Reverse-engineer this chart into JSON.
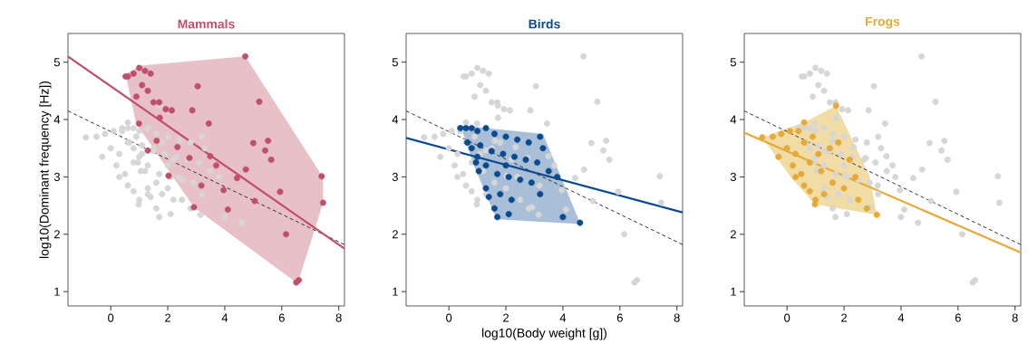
{
  "chart_data": [
    {
      "type": "scatter",
      "title": "Mammals",
      "ylabel": "log10(Dominant frequency [Hz])",
      "xlim": [
        -1.5,
        8.2
      ],
      "ylim": [
        0.75,
        5.5
      ],
      "xticks": [
        0,
        2,
        4,
        6,
        8
      ],
      "yticks": [
        1,
        2,
        3,
        4,
        5
      ],
      "series": [
        {
          "type": "area",
          "color": "#e8c0c8",
          "x": [
            0.52,
            1.04,
            4.72,
            7.45,
            7.45,
            6.56,
            2.92,
            0.89
          ],
          "values": [
            4.79,
            4.94,
            5.1,
            2.99,
            2.55,
            1.14,
            2.47,
            3.93
          ]
        },
        {
          "marker": "circle",
          "color": "#d6d6d6",
          "x": [
            0.4,
            0.6,
            0.8,
            1.0,
            1.3,
            1.6,
            2.0,
            2.4,
            2.8,
            3.2,
            3.3,
            0.65,
            0.8,
            1.1,
            1.5,
            1.9,
            2.3,
            2.7,
            3.1,
            3.5,
            3.8,
            0.95,
            1.05,
            1.3,
            1.7,
            2.1,
            2.5,
            2.9,
            1.3,
            1.4,
            1.8,
            2.2,
            1.6,
            1.7,
            2.1,
            3.2,
            4.0,
            4.6,
            1.0,
            2.0,
            -0.87,
            -0.5,
            -0.2,
            0.1,
            0.4,
            0.0,
            0.3,
            0.6,
            -0.3,
            0.2,
            0.5,
            0.8,
            1.1,
            1.5,
            1.72,
            1.8,
            2.2,
            0.3,
            0.6,
            0.8,
            1.0,
            0.98,
            1.3,
            1.6,
            2.0,
            2.5,
            2.8,
            3.15,
            2.4,
            1.2,
            0.6,
            0.9
          ],
          "values": [
            3.85,
            3.85,
            3.85,
            3.8,
            3.85,
            3.75,
            3.7,
            3.65,
            3.6,
            3.7,
            3.5,
            3.6,
            3.5,
            3.55,
            3.45,
            3.4,
            3.35,
            3.3,
            3.25,
            3.1,
            3.0,
            3.25,
            3.1,
            3.2,
            3.05,
            3.0,
            2.95,
            2.9,
            2.8,
            2.65,
            2.7,
            2.6,
            2.45,
            2.3,
            2.35,
            2.7,
            2.3,
            2.2,
            3.35,
            3.2,
            3.69,
            3.7,
            3.75,
            3.8,
            3.8,
            3.5,
            3.4,
            3.6,
            3.35,
            3.2,
            3.05,
            3.25,
            3.4,
            3.5,
            4.24,
            3.6,
            3.3,
            3.0,
            2.85,
            2.75,
            2.6,
            2.52,
            2.7,
            2.9,
            2.8,
            2.6,
            2.45,
            2.34,
            3.0,
            3.1,
            3.95,
            3.7
          ]
        },
        {
          "marker": "circle",
          "color": "#c0506a",
          "x": [
            0.6,
            0.8,
            1.0,
            1.2,
            1.4,
            1.1,
            1.3,
            1.5,
            0.9,
            1.7,
            1.72,
            1.93,
            3.05,
            2.86,
            4.72,
            5.21,
            2.14,
            3.44,
            5.0,
            5.52,
            5.42,
            5.63,
            7.4,
            7.45,
            6.15,
            6.51,
            6.6,
            2.92,
            4.11,
            2.03,
            3.18,
            3.96,
            5.05,
            5.94,
            4.74,
            3.7,
            2.34,
            1.61,
            0.99,
            1.3,
            2.76,
            4.43,
            3.49,
            0.52
          ],
          "values": [
            4.75,
            4.8,
            4.9,
            4.85,
            4.8,
            4.6,
            4.5,
            4.3,
            4.4,
            4.3,
            4.03,
            4.18,
            4.58,
            4.16,
            5.1,
            4.31,
            4.16,
            3.93,
            3.59,
            3.63,
            3.46,
            3.3,
            3.01,
            2.55,
            2.0,
            1.16,
            1.2,
            2.47,
            2.43,
            3.02,
            2.85,
            2.77,
            2.58,
            2.74,
            3.13,
            3.2,
            3.52,
            3.63,
            3.93,
            3.46,
            3.33,
            2.98,
            3.36,
            4.75
          ]
        },
        {
          "type": "line",
          "color": "#333333",
          "line_style": "dashed",
          "x": [
            -1.5,
            8.2
          ],
          "values": [
            4.15,
            1.82
          ]
        },
        {
          "type": "line",
          "color": "#c0506a",
          "line_style": "solid",
          "x": [
            -1.5,
            8.2
          ],
          "values": [
            5.1,
            1.75
          ]
        }
      ]
    },
    {
      "type": "scatter",
      "title": "Birds",
      "xlabel": "log10(Body weight [g])",
      "xlim": [
        -1.5,
        8.2
      ],
      "ylim": [
        0.75,
        5.5
      ],
      "xticks": [
        0,
        2,
        4,
        6,
        8
      ],
      "yticks": [
        1,
        2,
        3,
        4,
        5
      ],
      "series": [
        {
          "type": "area",
          "color": "#a9bfd8",
          "x": [
            0.41,
            3.3,
            4.62,
            1.67,
            0.88
          ],
          "values": [
            3.9,
            3.75,
            2.18,
            2.26,
            3.2
          ]
        },
        {
          "marker": "circle",
          "color": "#d6d6d6",
          "x": [
            0.6,
            0.8,
            1.0,
            1.2,
            1.4,
            1.1,
            1.3,
            1.5,
            0.9,
            1.7,
            1.72,
            1.93,
            3.05,
            2.86,
            4.72,
            5.21,
            2.14,
            3.44,
            5.0,
            5.52,
            5.42,
            5.63,
            7.4,
            7.45,
            6.15,
            6.51,
            6.6,
            2.92,
            4.11,
            2.03,
            3.18,
            3.96,
            5.05,
            5.94,
            4.74,
            3.7,
            2.34,
            1.61,
            0.99,
            1.3,
            2.76,
            4.43,
            3.49,
            0.52,
            -0.87,
            -0.5,
            -0.2,
            0.1,
            0.4,
            0.0,
            0.3,
            0.6,
            -0.3,
            0.2,
            0.5,
            0.8,
            1.1,
            1.5,
            1.72,
            1.8,
            2.2,
            0.3,
            0.6,
            0.8,
            1.0,
            0.98,
            1.3,
            1.6,
            2.0,
            2.5,
            2.8,
            3.15,
            2.4,
            1.2,
            0.6,
            0.9
          ],
          "values": [
            4.75,
            4.8,
            4.9,
            4.85,
            4.8,
            4.6,
            4.5,
            4.3,
            4.4,
            4.3,
            4.03,
            4.18,
            4.58,
            4.16,
            5.1,
            4.31,
            4.16,
            3.93,
            3.59,
            3.63,
            3.46,
            3.3,
            3.01,
            2.55,
            2.0,
            1.16,
            1.2,
            2.47,
            2.43,
            3.02,
            2.85,
            2.77,
            2.58,
            2.74,
            3.13,
            3.2,
            3.52,
            3.63,
            3.93,
            3.46,
            3.33,
            2.98,
            3.36,
            4.75,
            3.69,
            3.7,
            3.75,
            3.8,
            3.8,
            3.5,
            3.4,
            3.6,
            3.35,
            3.2,
            3.05,
            3.25,
            3.4,
            3.5,
            4.24,
            3.6,
            3.3,
            3.0,
            2.85,
            2.75,
            2.6,
            2.52,
            2.7,
            2.9,
            2.8,
            2.6,
            2.45,
            2.34,
            3.0,
            3.1,
            3.95,
            3.7
          ]
        },
        {
          "marker": "circle",
          "color": "#0b4a8e",
          "x": [
            0.4,
            0.6,
            0.8,
            1.0,
            1.3,
            1.6,
            2.0,
            2.4,
            2.8,
            3.2,
            3.3,
            0.65,
            0.8,
            1.1,
            1.5,
            1.9,
            2.3,
            2.7,
            3.1,
            3.5,
            3.8,
            0.95,
            1.05,
            1.3,
            1.7,
            2.1,
            2.5,
            2.9,
            1.3,
            1.4,
            1.8,
            2.2,
            1.6,
            1.7,
            2.1,
            3.2,
            4.0,
            4.6,
            1.0,
            2.0
          ],
          "values": [
            3.85,
            3.85,
            3.85,
            3.8,
            3.85,
            3.75,
            3.7,
            3.65,
            3.6,
            3.7,
            3.5,
            3.6,
            3.5,
            3.55,
            3.45,
            3.4,
            3.35,
            3.3,
            3.25,
            3.1,
            3.0,
            3.25,
            3.1,
            3.2,
            3.05,
            3.0,
            2.95,
            2.9,
            2.8,
            2.65,
            2.7,
            2.6,
            2.45,
            2.3,
            2.35,
            2.7,
            2.3,
            2.2,
            3.35,
            3.2
          ]
        },
        {
          "type": "line",
          "color": "#333333",
          "line_style": "dashed",
          "x": [
            -1.5,
            8.2
          ],
          "values": [
            4.15,
            1.82
          ]
        },
        {
          "type": "line",
          "color": "#0b4a8e",
          "line_style": "solid",
          "x": [
            -1.5,
            8.2
          ],
          "values": [
            3.68,
            2.38
          ]
        }
      ]
    },
    {
      "type": "scatter",
      "title": "Frogs",
      "xlim": [
        -1.5,
        8.2
      ],
      "ylim": [
        0.75,
        5.5
      ],
      "xticks": [
        0,
        2,
        4,
        6,
        8
      ],
      "yticks": [
        1,
        2,
        3,
        4,
        5
      ],
      "series": [
        {
          "type": "area",
          "color": "#f2dca6",
          "x": [
            -0.87,
            0.6,
            1.72,
            2.89,
            3.15,
            0.98,
            0.14
          ],
          "values": [
            3.69,
            3.95,
            4.24,
            3.02,
            2.34,
            2.52,
            2.99
          ]
        },
        {
          "marker": "circle",
          "color": "#d6d6d6",
          "x": [
            0.6,
            0.8,
            1.0,
            1.2,
            1.4,
            1.1,
            1.3,
            1.5,
            0.9,
            1.7,
            1.72,
            1.93,
            3.05,
            2.86,
            4.72,
            5.21,
            2.14,
            3.44,
            5.0,
            5.52,
            5.42,
            5.63,
            7.4,
            7.45,
            6.15,
            6.51,
            6.6,
            2.92,
            4.11,
            2.03,
            3.18,
            3.96,
            5.05,
            5.94,
            4.74,
            3.7,
            2.34,
            1.61,
            0.99,
            1.3,
            2.76,
            4.43,
            3.49,
            0.52,
            0.4,
            0.6,
            0.8,
            1.0,
            1.3,
            1.6,
            2.0,
            2.4,
            2.8,
            3.2,
            3.3,
            0.65,
            0.8,
            1.1,
            1.5,
            1.9,
            2.3,
            2.7,
            3.1,
            3.5,
            3.8,
            0.95,
            1.05,
            1.3,
            1.7,
            2.1,
            2.5,
            2.9,
            1.3,
            1.4,
            1.8,
            2.2,
            1.6,
            1.7,
            2.1,
            3.2,
            4.0,
            4.6,
            1.0,
            2.0
          ],
          "values": [
            4.75,
            4.8,
            4.9,
            4.85,
            4.8,
            4.6,
            4.5,
            4.3,
            4.4,
            4.3,
            4.03,
            4.18,
            4.58,
            4.16,
            5.1,
            4.31,
            4.16,
            3.93,
            3.59,
            3.63,
            3.46,
            3.3,
            3.01,
            2.55,
            2.0,
            1.16,
            1.2,
            2.47,
            2.43,
            3.02,
            2.85,
            2.77,
            2.58,
            2.74,
            3.13,
            3.2,
            3.52,
            3.63,
            3.93,
            3.46,
            3.33,
            2.98,
            3.36,
            4.75,
            3.85,
            3.85,
            3.85,
            3.8,
            3.85,
            3.75,
            3.7,
            3.65,
            3.6,
            3.7,
            3.5,
            3.6,
            3.5,
            3.55,
            3.45,
            3.4,
            3.35,
            3.3,
            3.25,
            3.1,
            3.0,
            3.25,
            3.1,
            3.2,
            3.05,
            3.0,
            2.95,
            2.9,
            2.8,
            2.65,
            2.7,
            2.6,
            2.45,
            2.3,
            2.35,
            2.7,
            2.3,
            2.2,
            3.35,
            3.2
          ]
        },
        {
          "marker": "circle",
          "color": "#e5aa35",
          "x": [
            -0.87,
            -0.5,
            -0.2,
            0.1,
            0.4,
            0.0,
            0.3,
            0.6,
            -0.3,
            0.2,
            0.5,
            0.8,
            1.1,
            1.5,
            1.72,
            1.8,
            2.2,
            0.3,
            0.6,
            0.8,
            1.0,
            0.98,
            1.3,
            1.6,
            2.0,
            2.5,
            2.8,
            3.15,
            2.4,
            1.2,
            0.6,
            0.9
          ],
          "values": [
            3.69,
            3.7,
            3.75,
            3.8,
            3.8,
            3.5,
            3.4,
            3.6,
            3.35,
            3.2,
            3.05,
            3.25,
            3.4,
            3.5,
            4.24,
            3.6,
            3.3,
            3.0,
            2.85,
            2.75,
            2.6,
            2.52,
            2.7,
            2.9,
            2.8,
            2.6,
            2.45,
            2.34,
            3.0,
            3.1,
            3.95,
            3.7
          ]
        },
        {
          "type": "line",
          "color": "#333333",
          "line_style": "dashed",
          "x": [
            -1.5,
            8.2
          ],
          "values": [
            4.15,
            1.82
          ]
        },
        {
          "type": "line",
          "color": "#e5aa35",
          "line_style": "solid",
          "x": [
            -1.5,
            8.2
          ],
          "values": [
            3.77,
            1.68
          ]
        }
      ]
    }
  ]
}
